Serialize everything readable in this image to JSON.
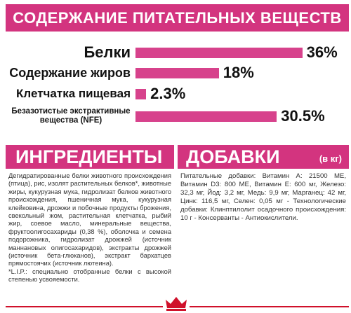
{
  "chart_data": {
    "type": "bar",
    "orientation": "horizontal",
    "title": "СОДЕРЖАНИЕ ПИТАТЕЛЬНЫХ ВЕЩЕСТВ",
    "categories": [
      "Белки",
      "Содержание жиров",
      "Клетчатка пищевая",
      "Безазотистые экстрактивные вещества (NFE)"
    ],
    "values": [
      36,
      18,
      2.3,
      30.5
    ],
    "value_labels": [
      "36%",
      "18%",
      "2.3%",
      "30.5%"
    ],
    "color": "#d7428c"
  },
  "ingredients": {
    "title": "ИНГРЕДИЕНТЫ",
    "text": "Дегидратированные белки животного происхождения (птица), рис, изолят растительных белков*, животные жиры, кукурузная мука, гидролизат белков животного происхождения, пшеничная мука, кукурузная клейковина, дрожжи и побочные продукты брожения, свекольный жом, растительная клетчатка, рыбий жир, соевое масло, минеральные вещества, фруктоолигосахариды (0,38 %), оболочка и семена подорожника, гидролизат дрожжей (источник маннановых олигосахаридов), экстракты дрожжей (источник бета-глюканов), экстракт бархатцев прямостоячих (источник лютеина).",
    "footnote": "*L.I.P.: специально отобранные белки с высокой степенью усвояемости."
  },
  "additives": {
    "title": "ДОБАВКИ",
    "unit": "(в кг)",
    "text": "Питательные добавки: Витамин А: 21500 МЕ, Витамин D3: 800 МЕ, Витамин Е: 600 мг, Железо: 32,3 мг, Йод: 3,2 мг, Медь: 9,9 мг, Марганец: 42 мг, Цинк: 116,5 мг, Селен: 0,05 мг - Технологические добавки: Клинптилолит осадочного происхождения: 10 г - Консерванты - Антиокислители."
  }
}
